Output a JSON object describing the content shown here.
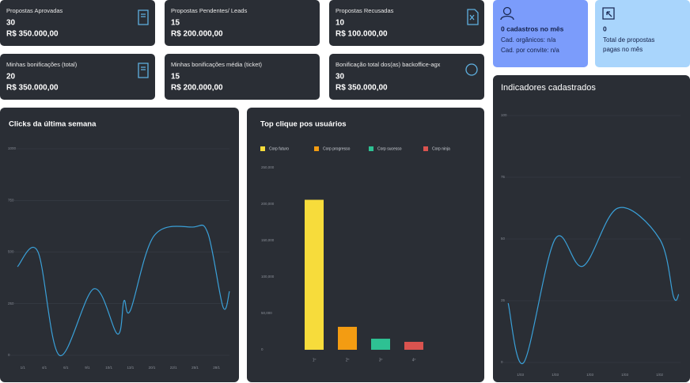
{
  "cards": [
    {
      "title": "Propostas Aprovadas",
      "count": "30",
      "amount": "R$ 350.000,00"
    },
    {
      "title": "Propostas  Pendentes/ Leads",
      "count": "15",
      "amount": "R$ 200.000,00"
    },
    {
      "title": "Propostas Recusadas",
      "count": "10",
      "amount": "R$ 100.000,00"
    },
    {
      "title": "Minhas bonificações (total)",
      "count": "20",
      "amount": "R$ 350.000,00"
    },
    {
      "title": "Minhas bonificações média (ticket)",
      "count": "15",
      "amount": "R$ 200.000,00"
    },
    {
      "title": "Bonificação total dos(as) backoffice-agx",
      "count": "30",
      "amount": "R$ 350.000,00"
    }
  ],
  "stats": {
    "registrations": {
      "title": "0 cadastros no mês",
      "organic": "Cad. orgânicos: n/a",
      "invite": "Cad. por convite: n/a"
    },
    "paid": {
      "count": "0",
      "label": "Total de propostas pagas no mês"
    }
  },
  "chart_data": [
    {
      "type": "line",
      "title": "Clicks da última semana",
      "color": "#3aa0d8",
      "grid": true,
      "x": [
        0.75,
        1.7,
        2.7,
        4.3,
        5.4,
        5.7,
        6.0,
        7.1,
        8.9,
        9.6,
        10.3,
        10.6
      ],
      "values": [
        429,
        502,
        0,
        322,
        103,
        264,
        218,
        579,
        621,
        590,
        234,
        310
      ],
      "xlim": [
        0.75,
        10.6
      ],
      "xticks": [
        {
          "value": 1,
          "label": "1/1"
        },
        {
          "value": 2,
          "label": "4/1"
        },
        {
          "value": 3,
          "label": "6/1"
        },
        {
          "value": 4,
          "label": "9/1"
        },
        {
          "value": 5,
          "label": "10/1"
        },
        {
          "value": 6,
          "label": "13/1"
        },
        {
          "value": 7,
          "label": "20/1"
        },
        {
          "value": 8,
          "label": "22/1"
        },
        {
          "value": 9,
          "label": "25/1"
        },
        {
          "value": 10,
          "label": "28/1"
        }
      ],
      "ylim": [
        0,
        1000
      ],
      "yticks": [
        0,
        250,
        500,
        750,
        1000
      ]
    },
    {
      "type": "bar",
      "title": "Top clique pos usuários",
      "grid": false,
      "categories": [
        "1º",
        "2º",
        "3º",
        "4º"
      ],
      "series": [
        {
          "name": "Corp futuro",
          "color": "#f7dc3b",
          "values": [
            206000,
            null,
            null,
            null
          ]
        },
        {
          "name": "Corp progresso",
          "color": "#f39c12",
          "values": [
            null,
            31500,
            null,
            null
          ]
        },
        {
          "name": "Corp sucesso",
          "color": "#2ec193",
          "values": [
            null,
            null,
            15200,
            null
          ]
        },
        {
          "name": "Corp ninja",
          "color": "#d9534f",
          "values": [
            null,
            null,
            null,
            10900
          ]
        }
      ],
      "ylim": [
        0,
        250000
      ],
      "yticks": [
        0,
        {
          "value": 50000,
          "label": "50,000"
        },
        {
          "value": 100000,
          "label": "100,000"
        },
        {
          "value": 150000,
          "label": "150,000"
        },
        {
          "value": 200000,
          "label": "200,000"
        },
        {
          "value": 250000,
          "label": "250,000"
        }
      ]
    },
    {
      "type": "line",
      "title": "Indicadores cadastrados",
      "color": "#3aa0d8",
      "grid": true,
      "x": [
        0.65,
        1.1,
        2.0,
        2.8,
        3.8,
        5.0,
        5.4,
        5.55
      ],
      "values": [
        24,
        0,
        50,
        39,
        62.5,
        50,
        26.6,
        27.6
      ],
      "xlim": [
        0.6,
        5.6
      ],
      "xticks": [
        {
          "value": 1,
          "label": "1/03"
        },
        {
          "value": 2,
          "label": "1/03"
        },
        {
          "value": 3,
          "label": "1/03"
        },
        {
          "value": 4,
          "label": "1/03"
        },
        {
          "value": 5,
          "label": "1/02"
        }
      ],
      "ylim": [
        0,
        100
      ],
      "yticks": [
        0,
        25,
        50,
        75,
        100
      ]
    }
  ]
}
